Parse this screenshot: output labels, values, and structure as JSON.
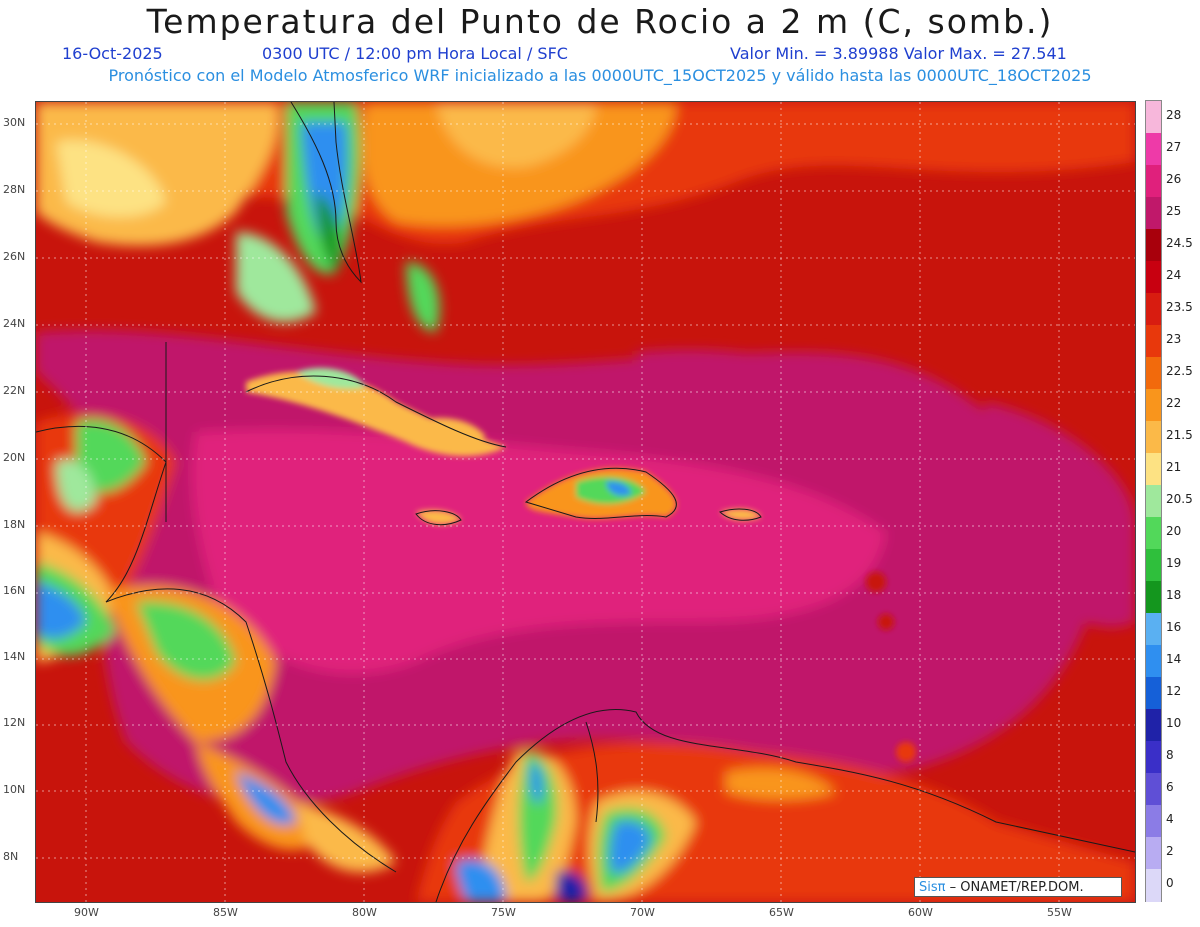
{
  "header": {
    "title": "Temperatura del Punto de Rocio a 2 m (C, somb.)",
    "date": "16-Oct-2025",
    "valid_time": "0300 UTC / 12:00 pm Hora Local / SFC",
    "min_max": "Valor Min. = 3.89988  Valor Max. = 27.541",
    "model_line": "Pronóstico con el Modelo Atmosferico WRF inicializado a las 0000UTC_15OCT2025 y válido hasta las  0000UTC_18OCT2025"
  },
  "axes": {
    "lat_labels": [
      "30N",
      "28N",
      "26N",
      "24N",
      "22N",
      "20N",
      "18N",
      "16N",
      "14N",
      "12N",
      "10N",
      "8N"
    ],
    "lon_labels": [
      "90W",
      "85W",
      "80W",
      "75W",
      "70W",
      "65W",
      "60W",
      "55W"
    ]
  },
  "colorbar": {
    "levels": [
      "28",
      "27",
      "26",
      "25",
      "24.5",
      "24",
      "23.5",
      "23",
      "22.5",
      "22",
      "21.5",
      "21",
      "20.5",
      "20",
      "19",
      "18",
      "16",
      "14",
      "12",
      "10",
      "8",
      "6",
      "4",
      "2",
      "0"
    ],
    "colors": [
      "#f7b7db",
      "#ee3aa8",
      "#e0207c",
      "#c0186a",
      "#a8000c",
      "#c80010",
      "#d81c10",
      "#e8380c",
      "#f26a0c",
      "#f9951c",
      "#fbb948",
      "#fde283",
      "#9fe89c",
      "#52d85a",
      "#2fbf3c",
      "#14961e",
      "#5ab0f2",
      "#2f8ff0",
      "#1560d8",
      "#1f22a8",
      "#3a2fc8",
      "#5f4fd6",
      "#8b7ce6",
      "#b8acf2",
      "#dcd8f8"
    ]
  },
  "credit": {
    "brand": "Sisπ",
    "text": "– ONAMET/REP.DOM."
  }
}
